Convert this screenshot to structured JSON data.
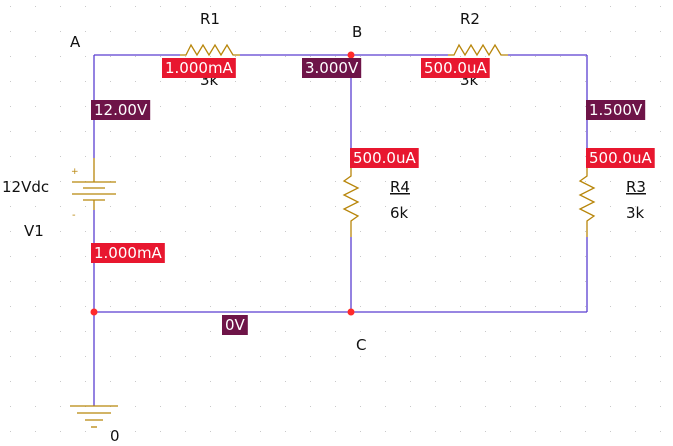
{
  "colors": {
    "wire": "#5b3fd1",
    "component": "#b8860b",
    "junction": "#ff2a2a",
    "current_tag": "#e8172f",
    "voltage_tag": "#6e1448",
    "grid_dot": "#c9c9c9",
    "text": "#111111"
  },
  "nodes": {
    "a": "A",
    "b": "B",
    "c": "C"
  },
  "components": {
    "r1": {
      "name": "R1",
      "value": "3k"
    },
    "r2": {
      "name": "R2",
      "value": "3k"
    },
    "r3": {
      "name": "R3",
      "value": "3k"
    },
    "r4": {
      "name": "R4",
      "value": "6k"
    },
    "v1": {
      "name": "V1",
      "value": "12Vdc",
      "plus": "+",
      "minus": "-"
    },
    "ground": {
      "label": "0",
      "icon": "ground-icon"
    }
  },
  "voltages": {
    "node_a": "12.00V",
    "node_b": "3.000V",
    "r3_top": "1.500V",
    "node_c": "0V"
  },
  "currents": {
    "r1": "1.000mA",
    "r2": "500.0uA",
    "r4": "500.0uA",
    "r3": "500.0uA",
    "v1": "1.000mA"
  }
}
